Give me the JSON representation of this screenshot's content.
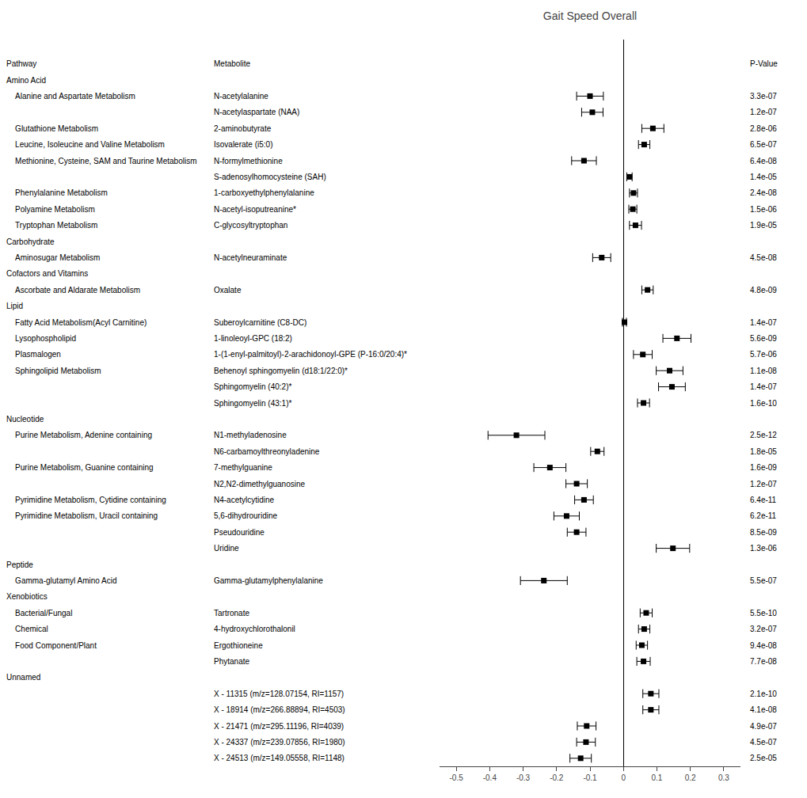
{
  "chart_data": {
    "type": "forest",
    "title": "Gait Speed Overall",
    "columns": [
      "Pathway",
      "Metabolite",
      "P-Value"
    ],
    "color": "#000000",
    "grid": false,
    "xlim": [
      -0.55,
      0.35
    ],
    "xticks": [
      -0.5,
      -0.4,
      -0.3,
      -0.2,
      -0.1,
      0,
      0.1,
      0.2,
      0.3
    ],
    "rows": [
      {
        "pathway": "Amino Acid"
      },
      {
        "pathway": "  Alanine and Aspartate Metabolism",
        "metabolite": "N-acetylalanine",
        "value": -0.1,
        "ci_low": -0.14,
        "ci_high": -0.06,
        "pvalue": "3.3e-07"
      },
      {
        "metabolite": "N-acetylaspartate (NAA)",
        "value": -0.093,
        "ci_low": -0.125,
        "ci_high": -0.061,
        "pvalue": "1.2e-07"
      },
      {
        "pathway": "  Glutathione Metabolism",
        "metabolite": "2-aminobutyrate",
        "value": 0.088,
        "ci_low": 0.055,
        "ci_high": 0.121,
        "pvalue": "2.8e-06"
      },
      {
        "pathway": "  Leucine, Isoleucine and Valine Metabolism",
        "metabolite": "Isovalerate (i5:0)",
        "value": 0.062,
        "ci_low": 0.045,
        "ci_high": 0.079,
        "pvalue": "6.5e-07"
      },
      {
        "pathway": "  Methionine, Cysteine, SAM and Taurine Metabolism",
        "metabolite": "N-formylmethionine",
        "value": -0.118,
        "ci_low": -0.155,
        "ci_high": -0.081,
        "pvalue": "6.4e-08"
      },
      {
        "metabolite": "S-adenosylhomocysteine (SAH)",
        "value": 0.018,
        "ci_low": 0.01,
        "ci_high": 0.026,
        "pvalue": "1.4e-05"
      },
      {
        "pathway": "  Phenylalanine Metabolism",
        "metabolite": "1-carboxyethylphenylalanine",
        "value": 0.03,
        "ci_low": 0.018,
        "ci_high": 0.042,
        "pvalue": "2.4e-08"
      },
      {
        "pathway": "  Polyamine Metabolism",
        "metabolite": "N-acetyl-isoputreanine*",
        "value": 0.028,
        "ci_low": 0.016,
        "ci_high": 0.04,
        "pvalue": "1.5e-06"
      },
      {
        "pathway": "  Tryptophan Metabolism",
        "metabolite": "C-glycosyltryptophan",
        "value": 0.036,
        "ci_low": 0.018,
        "ci_high": 0.054,
        "pvalue": "1.9e-05"
      },
      {
        "pathway": "Carbohydrate"
      },
      {
        "pathway": "  Aminosugar Metabolism",
        "metabolite": "N-acetylneuraminate",
        "value": -0.065,
        "ci_low": -0.092,
        "ci_high": -0.038,
        "pvalue": "4.5e-08"
      },
      {
        "pathway": "Cofactors and Vitamins"
      },
      {
        "pathway": "  Ascorbate and Aldarate Metabolism",
        "metabolite": "Oxalate",
        "value": 0.072,
        "ci_low": 0.055,
        "ci_high": 0.089,
        "pvalue": "4.8e-09"
      },
      {
        "pathway": "Lipid"
      },
      {
        "pathway": "  Fatty Acid Metabolism(Acyl Carnitine)",
        "metabolite": "Suberoylcarnitine (C8-DC)",
        "value": 0.003,
        "ci_low": -0.003,
        "ci_high": 0.009,
        "pvalue": "1.4e-07"
      },
      {
        "pathway": "  Lysophospholipid",
        "metabolite": "1-linoleoyl-GPC (18:2)",
        "value": 0.16,
        "ci_low": 0.118,
        "ci_high": 0.202,
        "pvalue": "5.6e-09"
      },
      {
        "pathway": "  Plasmalogen",
        "metabolite": "1-(1-enyl-palmitoyl)-2-arachidonoyl-GPE (P-16:0/20:4)*",
        "value": 0.058,
        "ci_low": 0.03,
        "ci_high": 0.086,
        "pvalue": "5.7e-06"
      },
      {
        "pathway": "  Sphingolipid Metabolism",
        "metabolite": "Behenoyl sphingomyelin (d18:1/22:0)*",
        "value": 0.138,
        "ci_low": 0.098,
        "ci_high": 0.178,
        "pvalue": "1.1e-08"
      },
      {
        "metabolite": "Sphingomyelin (40:2)*",
        "value": 0.145,
        "ci_low": 0.105,
        "ci_high": 0.185,
        "pvalue": "1.4e-07"
      },
      {
        "metabolite": "Sphingomyelin (43:1)*",
        "value": 0.06,
        "ci_low": 0.042,
        "ci_high": 0.078,
        "pvalue": "1.6e-10"
      },
      {
        "pathway": "Nucleotide"
      },
      {
        "pathway": "  Purine Metabolism, Adenine containing",
        "metabolite": "N1-methyladenosine",
        "value": -0.32,
        "ci_low": -0.405,
        "ci_high": -0.235,
        "pvalue": "2.5e-12"
      },
      {
        "metabolite": "N6-carbamoylthreonyladenine",
        "value": -0.078,
        "ci_low": -0.098,
        "ci_high": -0.058,
        "pvalue": "1.8e-05"
      },
      {
        "pathway": "  Purine Metabolism, Guanine containing",
        "metabolite": "7-methylguanine",
        "value": -0.22,
        "ci_low": -0.268,
        "ci_high": -0.172,
        "pvalue": "1.6e-09"
      },
      {
        "metabolite": "N2,N2-dimethylguanosine",
        "value": -0.14,
        "ci_low": -0.172,
        "ci_high": -0.108,
        "pvalue": "1.2e-07"
      },
      {
        "pathway": "  Pyrimidine Metabolism, Cytidine containing",
        "metabolite": "N4-acetylcytidine",
        "value": -0.118,
        "ci_low": -0.146,
        "ci_high": -0.09,
        "pvalue": "6.4e-11"
      },
      {
        "pathway": "  Pyrimidine Metabolism, Uracil containing",
        "metabolite": "5,6-dihydrouridine",
        "value": -0.17,
        "ci_low": -0.208,
        "ci_high": -0.132,
        "pvalue": "6.2e-11"
      },
      {
        "metabolite": "Pseudouridine",
        "value": -0.14,
        "ci_low": -0.168,
        "ci_high": -0.112,
        "pvalue": "8.5e-09"
      },
      {
        "metabolite": "Uridine",
        "value": 0.148,
        "ci_low": 0.098,
        "ci_high": 0.198,
        "pvalue": "1.3e-06"
      },
      {
        "pathway": "Peptide"
      },
      {
        "pathway": "  Gamma-glutamyl Amino Acid",
        "metabolite": "Gamma-glutamylphenylalanine",
        "value": -0.238,
        "ci_low": -0.308,
        "ci_high": -0.168,
        "pvalue": "5.5e-07"
      },
      {
        "pathway": "Xenobiotics"
      },
      {
        "pathway": "  Bacterial/Fungal",
        "metabolite": "Tartronate",
        "value": 0.068,
        "ci_low": 0.05,
        "ci_high": 0.086,
        "pvalue": "5.5e-10"
      },
      {
        "pathway": "  Chemical",
        "metabolite": "4-hydroxychlorothalonil",
        "value": 0.062,
        "ci_low": 0.045,
        "ci_high": 0.079,
        "pvalue": "3.2e-07"
      },
      {
        "pathway": "  Food Component/Plant",
        "metabolite": "Ergothioneine",
        "value": 0.055,
        "ci_low": 0.038,
        "ci_high": 0.072,
        "pvalue": "9.4e-08"
      },
      {
        "metabolite": "Phytanate",
        "value": 0.06,
        "ci_low": 0.04,
        "ci_high": 0.08,
        "pvalue": "7.7e-08"
      },
      {
        "pathway": "Unnamed"
      },
      {
        "metabolite": "X - 11315 (m/z=128.07154, RI=1157)",
        "value": 0.082,
        "ci_low": 0.058,
        "ci_high": 0.106,
        "pvalue": "2.1e-10"
      },
      {
        "metabolite": "X - 18914 (m/z=266.88894, RI=4503)",
        "value": 0.082,
        "ci_low": 0.058,
        "ci_high": 0.106,
        "pvalue": "4.1e-08"
      },
      {
        "metabolite": "X - 21471 (m/z=295.11196, RI=4039)",
        "value": -0.11,
        "ci_low": -0.138,
        "ci_high": -0.082,
        "pvalue": "4.9e-07"
      },
      {
        "metabolite": "X - 24337 (m/z=239.07856, RI=1980)",
        "value": -0.112,
        "ci_low": -0.14,
        "ci_high": -0.084,
        "pvalue": "4.5e-07"
      },
      {
        "metabolite": "X - 24513 (m/z=149.05558, RI=1148)",
        "value": -0.128,
        "ci_low": -0.16,
        "ci_high": -0.096,
        "pvalue": "2.5e-05"
      }
    ]
  }
}
